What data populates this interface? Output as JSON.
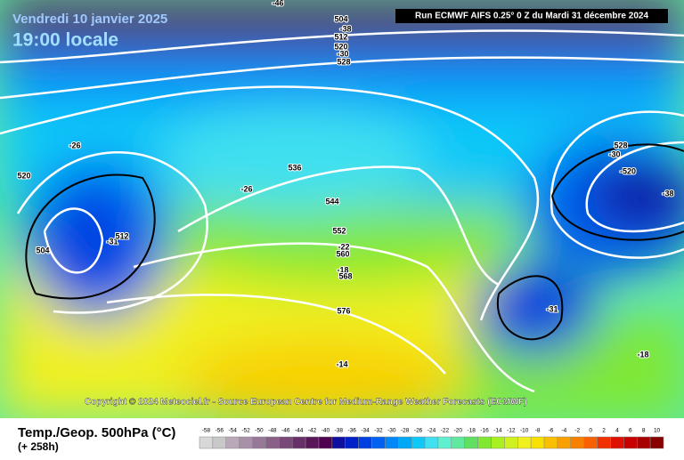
{
  "header": {
    "date": "Vendredi 10 janvier 2025",
    "time": "19:00 locale",
    "run": "Run ECMWF AIFS 0.25° 0 Z du Mardi 31 décembre 2024"
  },
  "map": {
    "contour_labels": [
      "-46",
      "504",
      "-38",
      "512",
      "520",
      "-30",
      "528",
      "-26",
      "520",
      "-26",
      "536",
      "544",
      "504",
      "-31",
      "512",
      "552",
      "-22",
      "560",
      "-18",
      "568",
      "576",
      "-14",
      "528",
      "-30",
      "-520",
      "-38",
      "-31",
      "-18"
    ],
    "copyright": "Copyright © 2024 Meteociel.fr - Source European Centre for Medium-Range Weather Forecasts (ECMWF)"
  },
  "footer": {
    "variable": "Temp./Geop. 500hPa (°C)",
    "lead": "(+ 258h)"
  },
  "legend": {
    "values": [
      -58,
      -56,
      -54,
      -52,
      -50,
      -48,
      -46,
      -44,
      -42,
      -40,
      -38,
      -36,
      -34,
      -32,
      -30,
      -28,
      -26,
      -24,
      -22,
      -20,
      -18,
      -16,
      -14,
      -12,
      -10,
      -8,
      -6,
      -4,
      -2,
      0,
      2,
      4,
      6,
      8,
      10
    ],
    "colors": [
      "#d8d8d8",
      "#c8c8c8",
      "#b8a8b8",
      "#a890a8",
      "#987898",
      "#886088",
      "#784878",
      "#683068",
      "#581858",
      "#500050",
      "#1010a0",
      "#0020c8",
      "#0040e0",
      "#0060f0",
      "#0088f8",
      "#00a8f8",
      "#10c8f8",
      "#40e0f0",
      "#60f0d0",
      "#60e8a0",
      "#60e060",
      "#80e830",
      "#a8f020",
      "#d0f020",
      "#f0f020",
      "#f8e000",
      "#f8c000",
      "#f8a000",
      "#f88000",
      "#f86000",
      "#f03000",
      "#e01000",
      "#c80000",
      "#a80000",
      "#880000"
    ]
  }
}
